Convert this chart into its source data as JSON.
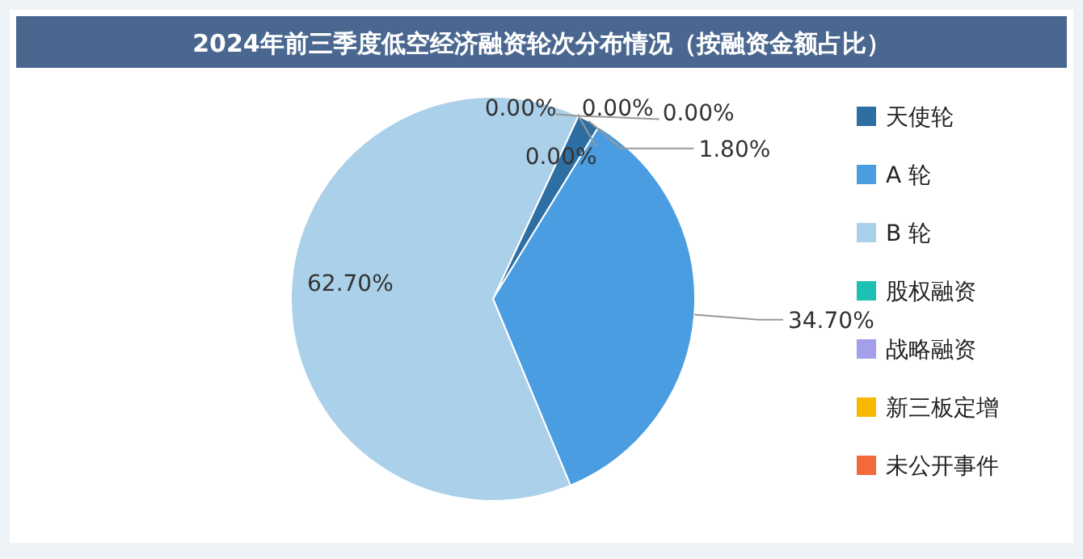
{
  "chart_data": {
    "type": "pie",
    "title": "2024年前三季度低空经济融资轮次分布情况（按融资金额占比）",
    "categories": [
      "天使轮",
      "A 轮",
      "B 轮",
      "股权融资",
      "战略融资",
      "新三板定增",
      "未公开事件"
    ],
    "values": [
      1.8,
      34.7,
      62.7,
      0,
      0,
      0,
      0
    ],
    "colors": [
      "#2e6fa3",
      "#4a9de0",
      "#abd0ea",
      "#1cc1b4",
      "#a39fea",
      "#f6b800",
      "#f26a3a"
    ],
    "value_labels": [
      "1.80%",
      "34.70%",
      "62.70%",
      "0.00%",
      "0.00%",
      "0.00%",
      "0.00%"
    ],
    "legend": "right"
  }
}
